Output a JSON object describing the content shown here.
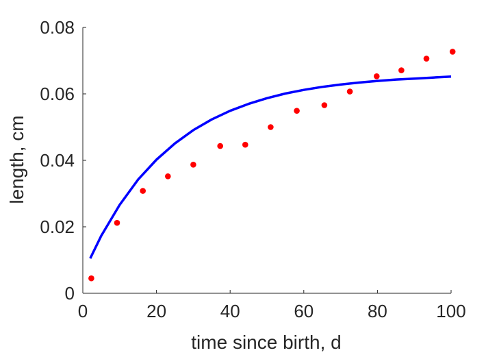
{
  "chart_data": {
    "type": "scatter",
    "title": "",
    "xlabel": "time since birth, d",
    "ylabel": "length, cm",
    "xlim": [
      0,
      100
    ],
    "ylim": [
      0,
      0.08
    ],
    "xticks": [
      0,
      20,
      40,
      60,
      80,
      100
    ],
    "xtick_labels": [
      "0",
      "20",
      "40",
      "60",
      "80",
      "100"
    ],
    "yticks": [
      0,
      0.02,
      0.04,
      0.06,
      0.08
    ],
    "ytick_labels": [
      "0",
      "0.02",
      "0.04",
      "0.06",
      "0.08"
    ],
    "grid": false,
    "legend": "none",
    "series": [
      {
        "kind": "scatter",
        "color": "#ff0000",
        "x": [
          2.3,
          9.3,
          16.3,
          23.1,
          30.0,
          37.3,
          44.1,
          51.0,
          58.1,
          65.6,
          72.5,
          79.8,
          86.5,
          93.3,
          100.4
        ],
        "y": [
          0.0045,
          0.0212,
          0.0308,
          0.0352,
          0.0387,
          0.0443,
          0.0447,
          0.05,
          0.0549,
          0.0566,
          0.0607,
          0.0653,
          0.0671,
          0.0706,
          0.0727
        ]
      },
      {
        "kind": "line",
        "color": "#0000ff",
        "x": [
          2,
          5,
          10,
          15,
          20,
          25,
          30,
          35,
          40,
          45,
          50,
          55,
          60,
          65,
          70,
          75,
          80,
          85,
          90,
          95,
          100
        ],
        "y": [
          0.0105,
          0.0173,
          0.0266,
          0.0342,
          0.0402,
          0.0451,
          0.0491,
          0.0523,
          0.0549,
          0.057,
          0.0587,
          0.0601,
          0.0612,
          0.0621,
          0.0628,
          0.0634,
          0.0639,
          0.0643,
          0.0646,
          0.0649,
          0.0652
        ]
      }
    ]
  }
}
